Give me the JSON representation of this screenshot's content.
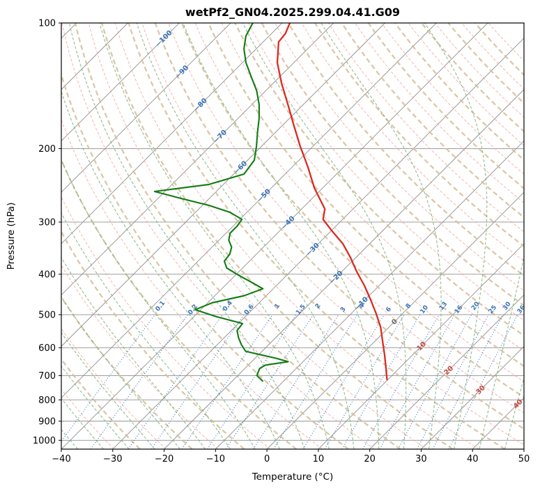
{
  "chart_data": {
    "type": "line",
    "subtype": "skewT-logP-sounding",
    "title": "wetPf2_GN04.2025.299.04.41.G09",
    "xlabel": "Temperature (°C)",
    "ylabel": "Pressure (hPa)",
    "xlim": [
      -40,
      50
    ],
    "pressure_range": [
      100,
      1050
    ],
    "x_ticks": [
      -40,
      -30,
      -20,
      -10,
      0,
      10,
      20,
      30,
      40,
      50
    ],
    "y_ticks": [
      100,
      200,
      300,
      400,
      500,
      600,
      700,
      800,
      900,
      1000
    ],
    "skew_degrees": 45,
    "grid": true,
    "isotherms": {
      "start": -120,
      "end": 50,
      "step": 10
    },
    "dry_adiabats": {
      "start": 240,
      "end": 450,
      "step": 10
    },
    "bold_adiabats": {
      "start": 245,
      "end": 445,
      "step": 10
    },
    "moist_adiabats": {
      "start": -55,
      "end": 45,
      "step": 5
    },
    "mixing_ratio_values": [
      0.1,
      0.2,
      0.4,
      0.6,
      1,
      1.5,
      2,
      3,
      4,
      6,
      8,
      10,
      13,
      16,
      20,
      25,
      30,
      36
    ],
    "mixing_line_top_pressure": 500,
    "mixing_label_pressure": 482,
    "isotherm_labels": [
      {
        "t": -100,
        "p": 109
      },
      {
        "t": -90,
        "p": 131
      },
      {
        "t": -80,
        "p": 157
      },
      {
        "t": -70,
        "p": 187
      },
      {
        "t": -60,
        "p": 222
      },
      {
        "t": -50,
        "p": 259
      },
      {
        "t": -40,
        "p": 301
      },
      {
        "t": -30,
        "p": 349
      },
      {
        "t": -20,
        "p": 407
      },
      {
        "t": -10,
        "p": 470
      },
      {
        "t": 0,
        "p": 520
      },
      {
        "t": 10,
        "p": 595
      },
      {
        "t": 20,
        "p": 680
      },
      {
        "t": 30,
        "p": 757
      },
      {
        "t": 40,
        "p": 818
      }
    ],
    "series": [
      {
        "name": "temperature",
        "color": "#d92b20",
        "points": [
          [
            100,
            -78.5
          ],
          [
            106,
            -77.3
          ],
          [
            111,
            -77.0
          ],
          [
            124.5,
            -73.2
          ],
          [
            139.7,
            -68.3
          ],
          [
            156.8,
            -63.0
          ],
          [
            175.9,
            -57.8
          ],
          [
            197.4,
            -52.5
          ],
          [
            221.6,
            -46.9
          ],
          [
            248.6,
            -41.6
          ],
          [
            278.9,
            -35.5
          ],
          [
            295.5,
            -33.8
          ],
          [
            313.1,
            -30.2
          ],
          [
            338.1,
            -25.2
          ],
          [
            365.1,
            -21.0
          ],
          [
            394.2,
            -17.1
          ],
          [
            425.7,
            -12.9
          ],
          [
            459.7,
            -9.0
          ],
          [
            496.4,
            -5.2
          ],
          [
            536.1,
            -1.6
          ],
          [
            578.9,
            1.5
          ],
          [
            625.1,
            4.6
          ],
          [
            675.1,
            7.6
          ],
          [
            715.0,
            9.8
          ]
        ]
      },
      {
        "name": "dewpoint",
        "color": "#117a11",
        "points": [
          [
            100,
            -85.7
          ],
          [
            107.5,
            -84.5
          ],
          [
            115.3,
            -82.4
          ],
          [
            124.5,
            -79.3
          ],
          [
            134.4,
            -75.6
          ],
          [
            145.2,
            -71.8
          ],
          [
            156.8,
            -68.6
          ],
          [
            169.3,
            -65.9
          ],
          [
            182.8,
            -63.5
          ],
          [
            197.4,
            -61.0
          ],
          [
            213.2,
            -58.7
          ],
          [
            230.2,
            -58.0
          ],
          [
            243.8,
            -62.8
          ],
          [
            253.4,
            -72.0
          ],
          [
            263.3,
            -65.5
          ],
          [
            273.6,
            -58.7
          ],
          [
            284.3,
            -53.3
          ],
          [
            295.5,
            -49.6
          ],
          [
            307.0,
            -49.2
          ],
          [
            319.0,
            -49.2
          ],
          [
            331.5,
            -48.1
          ],
          [
            344.4,
            -46.2
          ],
          [
            357.9,
            -45.2
          ],
          [
            371.9,
            -44.9
          ],
          [
            386.4,
            -43.1
          ],
          [
            401.6,
            -39.5
          ],
          [
            417.2,
            -35.7
          ],
          [
            433.5,
            -32.0
          ],
          [
            450.4,
            -34.3
          ],
          [
            468.0,
            -39.1
          ],
          [
            486.3,
            -41.1
          ],
          [
            505.3,
            -35.7
          ],
          [
            525.0,
            -29.2
          ],
          [
            545.5,
            -28.9
          ],
          [
            566.8,
            -27.3
          ],
          [
            588.9,
            -25.4
          ],
          [
            611.9,
            -23.2
          ],
          [
            635.8,
            -16.0
          ],
          [
            648.0,
            -12.9
          ],
          [
            660.5,
            -16.7
          ],
          [
            673.2,
            -17.1
          ],
          [
            699.2,
            -16.3
          ],
          [
            721.0,
            -14.1
          ]
        ]
      }
    ],
    "colors": {
      "grid": "#8f8f8f",
      "dry_adiabat": "#f2a19a",
      "bold_adiabat": "#d5bd96",
      "moist_adiabat": "#7ab27a",
      "mixing": "#3f7cbf",
      "label_blue": "#3a74b8",
      "label_red": "#c64a42",
      "label_gray": "#6f6f6f",
      "temperature": "#d92b20",
      "dewpoint": "#117a11"
    }
  }
}
